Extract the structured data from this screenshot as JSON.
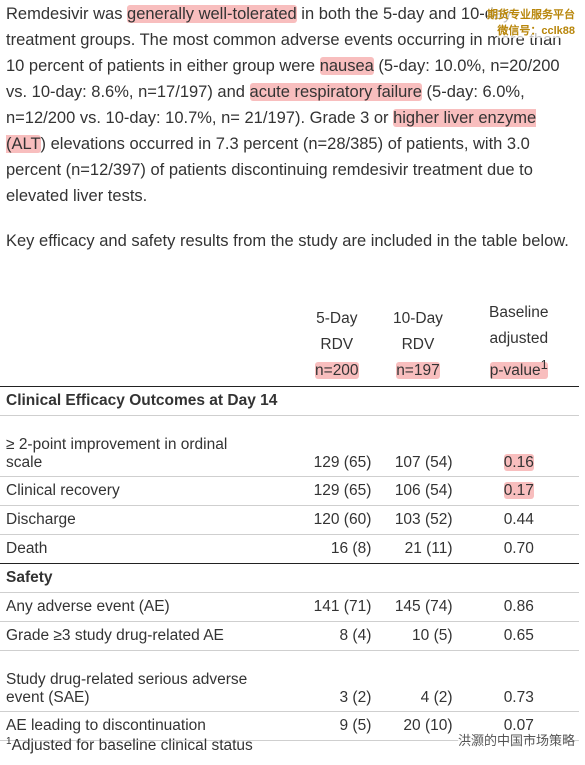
{
  "intro": {
    "t1": "Remdesivir was ",
    "h1": "generally well-tolerated",
    "t2": " in both the 5-day and 10-day treatment groups. The most common adverse events occurring in more than 10 percent of patients in either group were ",
    "h2": "nausea",
    "t3": " (5-day: 10.0%, n=20/200 vs. 10-day: 8.6%, n=17/197) and ",
    "h3": "acute respiratory failure",
    "t4": " (5-day: 6.0%, n=12/200 vs. 10-day: 10.7%, n= 21/197). Grade 3 or ",
    "h4": "higher liver enzyme (ALT",
    "t5": ") elevations occurred in 7.3 percent (n=28/385) of patients, with 3.0 percent (n=12/397) of patients discontinuing remdesivir treatment due to elevated liver tests."
  },
  "lead": "Key efficacy and safety results from the study are included in the table below.",
  "watermark": {
    "line1": "期货专业服务平台",
    "line2": "微信号：cclk88",
    "bottom": "洪灏的中国市场策略"
  },
  "table": {
    "head": {
      "c2": [
        "5-Day",
        "RDV",
        "n=200"
      ],
      "c3": [
        "10-Day",
        "RDV",
        "n=197"
      ],
      "c4": [
        "Baseline",
        "adjusted",
        "p-value",
        "1"
      ]
    },
    "section1": "Clinical Efficacy Outcomes at Day 14",
    "rows1": [
      {
        "label1": "≥ 2-point improvement in ordinal",
        "label2": "scale",
        "a": "129 (65)",
        "b": "107 (54)",
        "p": "0.16"
      },
      {
        "label": "Clinical recovery",
        "a": "129 (65)",
        "b": "106 (54)",
        "p": "0.17"
      },
      {
        "label": "Discharge",
        "a": "120 (60)",
        "b": "103 (52)",
        "p": "0.44"
      },
      {
        "label": "Death",
        "a": "16 (8)",
        "b": "21 (11)",
        "p": "0.70"
      }
    ],
    "section2": "Safety",
    "rows2": [
      {
        "label": "Any adverse event (AE)",
        "a": "141 (71)",
        "b": "145 (74)",
        "p": "0.86"
      },
      {
        "label": "Grade ≥3 study drug-related AE",
        "a": "8 (4)",
        "b": "10 (5)",
        "p": "0.65"
      },
      {
        "label1": "Study drug-related serious adverse",
        "label2": "event (SAE)",
        "a": "3 (2)",
        "b": "4 (2)",
        "p": "0.73"
      },
      {
        "label": "AE leading to discontinuation",
        "a": "9 (5)",
        "b": "20 (10)",
        "p": "0.07"
      }
    ]
  },
  "footnote": {
    "mark": "1",
    "text": "Adjusted for baseline clinical status"
  }
}
